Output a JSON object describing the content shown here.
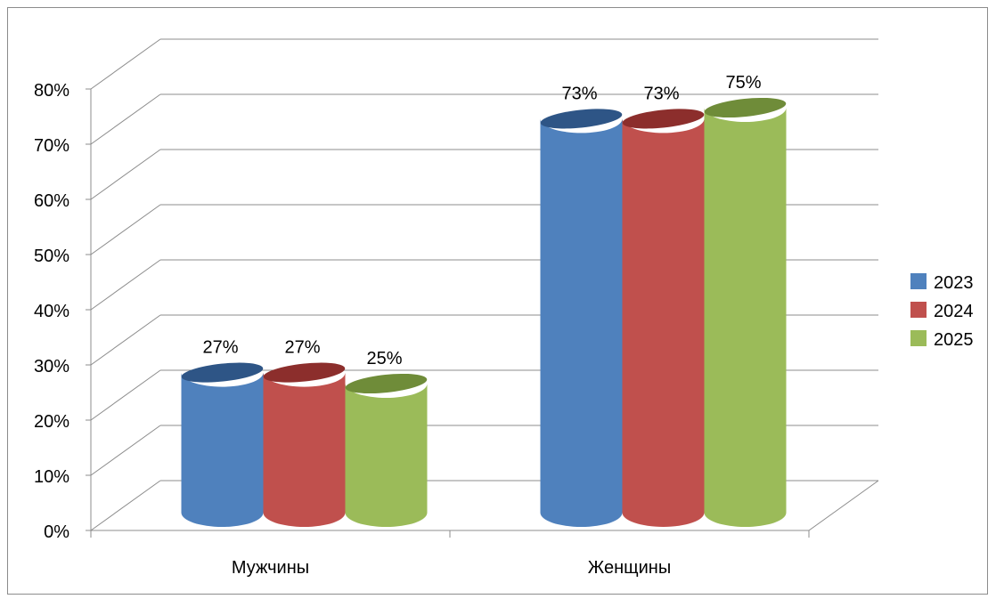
{
  "chart_data": {
    "type": "bar",
    "style": "3d-cylinder",
    "categories": [
      "Мужчины",
      "Женщины"
    ],
    "series": [
      {
        "name": "2023",
        "values": [
          27,
          73
        ],
        "labels": [
          "27%",
          "73%"
        ],
        "color": "#4F81BD",
        "top_color": "#2E5586"
      },
      {
        "name": "2024",
        "values": [
          27,
          73
        ],
        "labels": [
          "27%",
          "73%"
        ],
        "color": "#C0504D",
        "top_color": "#8C2E2C"
      },
      {
        "name": "2025",
        "values": [
          25,
          75
        ],
        "labels": [
          "25%",
          "75%"
        ],
        "color": "#9BBB59",
        "top_color": "#6F8C39"
      }
    ],
    "ylim": [
      0,
      80
    ],
    "ytick_labels": [
      "0%",
      "10%",
      "20%",
      "30%",
      "40%",
      "50%",
      "60%",
      "70%",
      "80%"
    ],
    "grid": true,
    "legend_position": "right",
    "title": "",
    "xlabel": "",
    "ylabel": ""
  }
}
